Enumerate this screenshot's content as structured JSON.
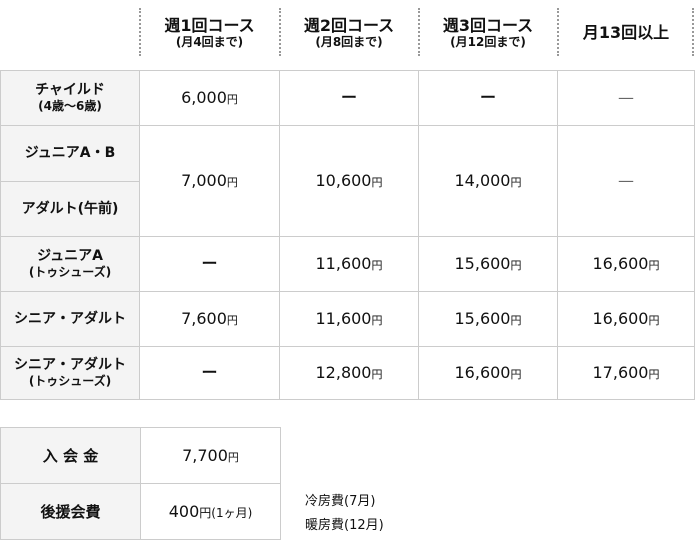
{
  "header": [
    {
      "main": "週1回コース",
      "sub": "(月4回まで)"
    },
    {
      "main": "週2回コース",
      "sub": "(月8回まで)"
    },
    {
      "main": "週3回コース",
      "sub": "(月12回まで)"
    },
    {
      "main": "月13回以上",
      "sub": ""
    }
  ],
  "rows": {
    "child": {
      "label": "チャイルド",
      "sub": "(4歳〜6歳)",
      "c1": "6,000",
      "c2": "ー",
      "c3": "ー",
      "c4": "—"
    },
    "junior_ab": {
      "label": "ジュニアA・B"
    },
    "adult_am": {
      "label": "アダルト(午前)",
      "c1": "7,000",
      "c2": "10,600",
      "c3": "14,000",
      "c4": "—"
    },
    "junior_a": {
      "label": "ジュニアA",
      "sub": "(トゥシューズ)",
      "c1": "ー",
      "c2": "11,600",
      "c3": "15,600",
      "c4": "16,600"
    },
    "senior": {
      "label": "シニア・アダルト",
      "c1": "7,600",
      "c2": "11,600",
      "c3": "15,600",
      "c4": "16,600"
    },
    "senior_pointe": {
      "label": "シニア・アダルト",
      "sub": "(トゥシューズ)",
      "c1": "ー",
      "c2": "12,800",
      "c3": "16,600",
      "c4": "17,600"
    }
  },
  "yen": "円",
  "fees": {
    "entry": {
      "label": "入 会 金",
      "value": "7,700",
      "unit": "円"
    },
    "support": {
      "label": "後援会費",
      "value": "400",
      "unit": "円(1ヶ月)"
    }
  },
  "notes": [
    "冷房費(7月)",
    "暖房費(12月)"
  ]
}
